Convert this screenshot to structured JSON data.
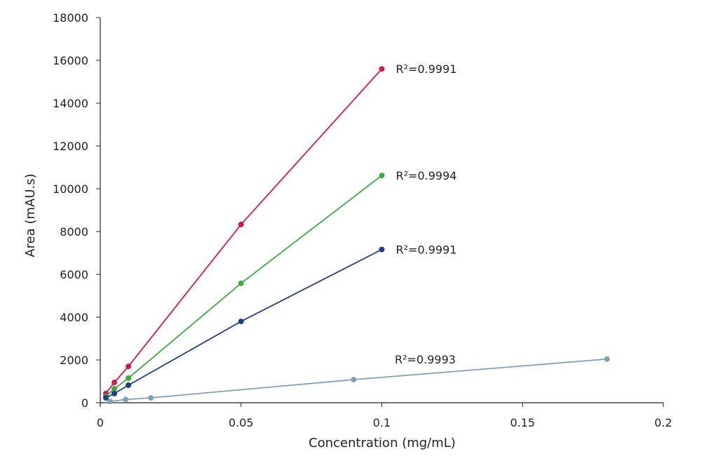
{
  "chart_data": {
    "type": "line",
    "xlabel": "Concentration (mg/mL)",
    "ylabel": "Area (mAU.s)",
    "xlim": [
      0,
      0.2
    ],
    "ylim": [
      0,
      18000
    ],
    "xticks": [
      "0",
      "0.05",
      "0.1",
      "0.15",
      "0.2"
    ],
    "xtick_values": [
      0,
      0.05,
      0.1,
      0.15,
      0.2
    ],
    "yticks": [
      "0",
      "2000",
      "4000",
      "6000",
      "8000",
      "10000",
      "12000",
      "14000",
      "16000",
      "18000"
    ],
    "ytick_values": [
      0,
      2000,
      4000,
      6000,
      8000,
      10000,
      12000,
      14000,
      16000,
      18000
    ],
    "grid": false,
    "series": [
      {
        "color": "#d0184a",
        "label": "R²=0.9991",
        "x": [
          0.002,
          0.005,
          0.01,
          0.05,
          0.1
        ],
        "y": [
          430,
          950,
          1700,
          8330,
          15600
        ]
      },
      {
        "color": "#3daa3d",
        "label": "R²=0.9994",
        "x": [
          0.002,
          0.005,
          0.01,
          0.05,
          0.1
        ],
        "y": [
          300,
          650,
          1150,
          5580,
          10620
        ]
      },
      {
        "color": "#233d84",
        "label": "R²=0.9991",
        "x": [
          0.002,
          0.005,
          0.01,
          0.05,
          0.1
        ],
        "y": [
          230,
          430,
          820,
          3800,
          7160
        ]
      },
      {
        "color": "#7fa0b5",
        "label": "R²=0.9993",
        "x": [
          0.0035,
          0.009,
          0.018,
          0.09,
          0.18
        ],
        "y": [
          60,
          150,
          230,
          1080,
          2040
        ]
      }
    ]
  }
}
